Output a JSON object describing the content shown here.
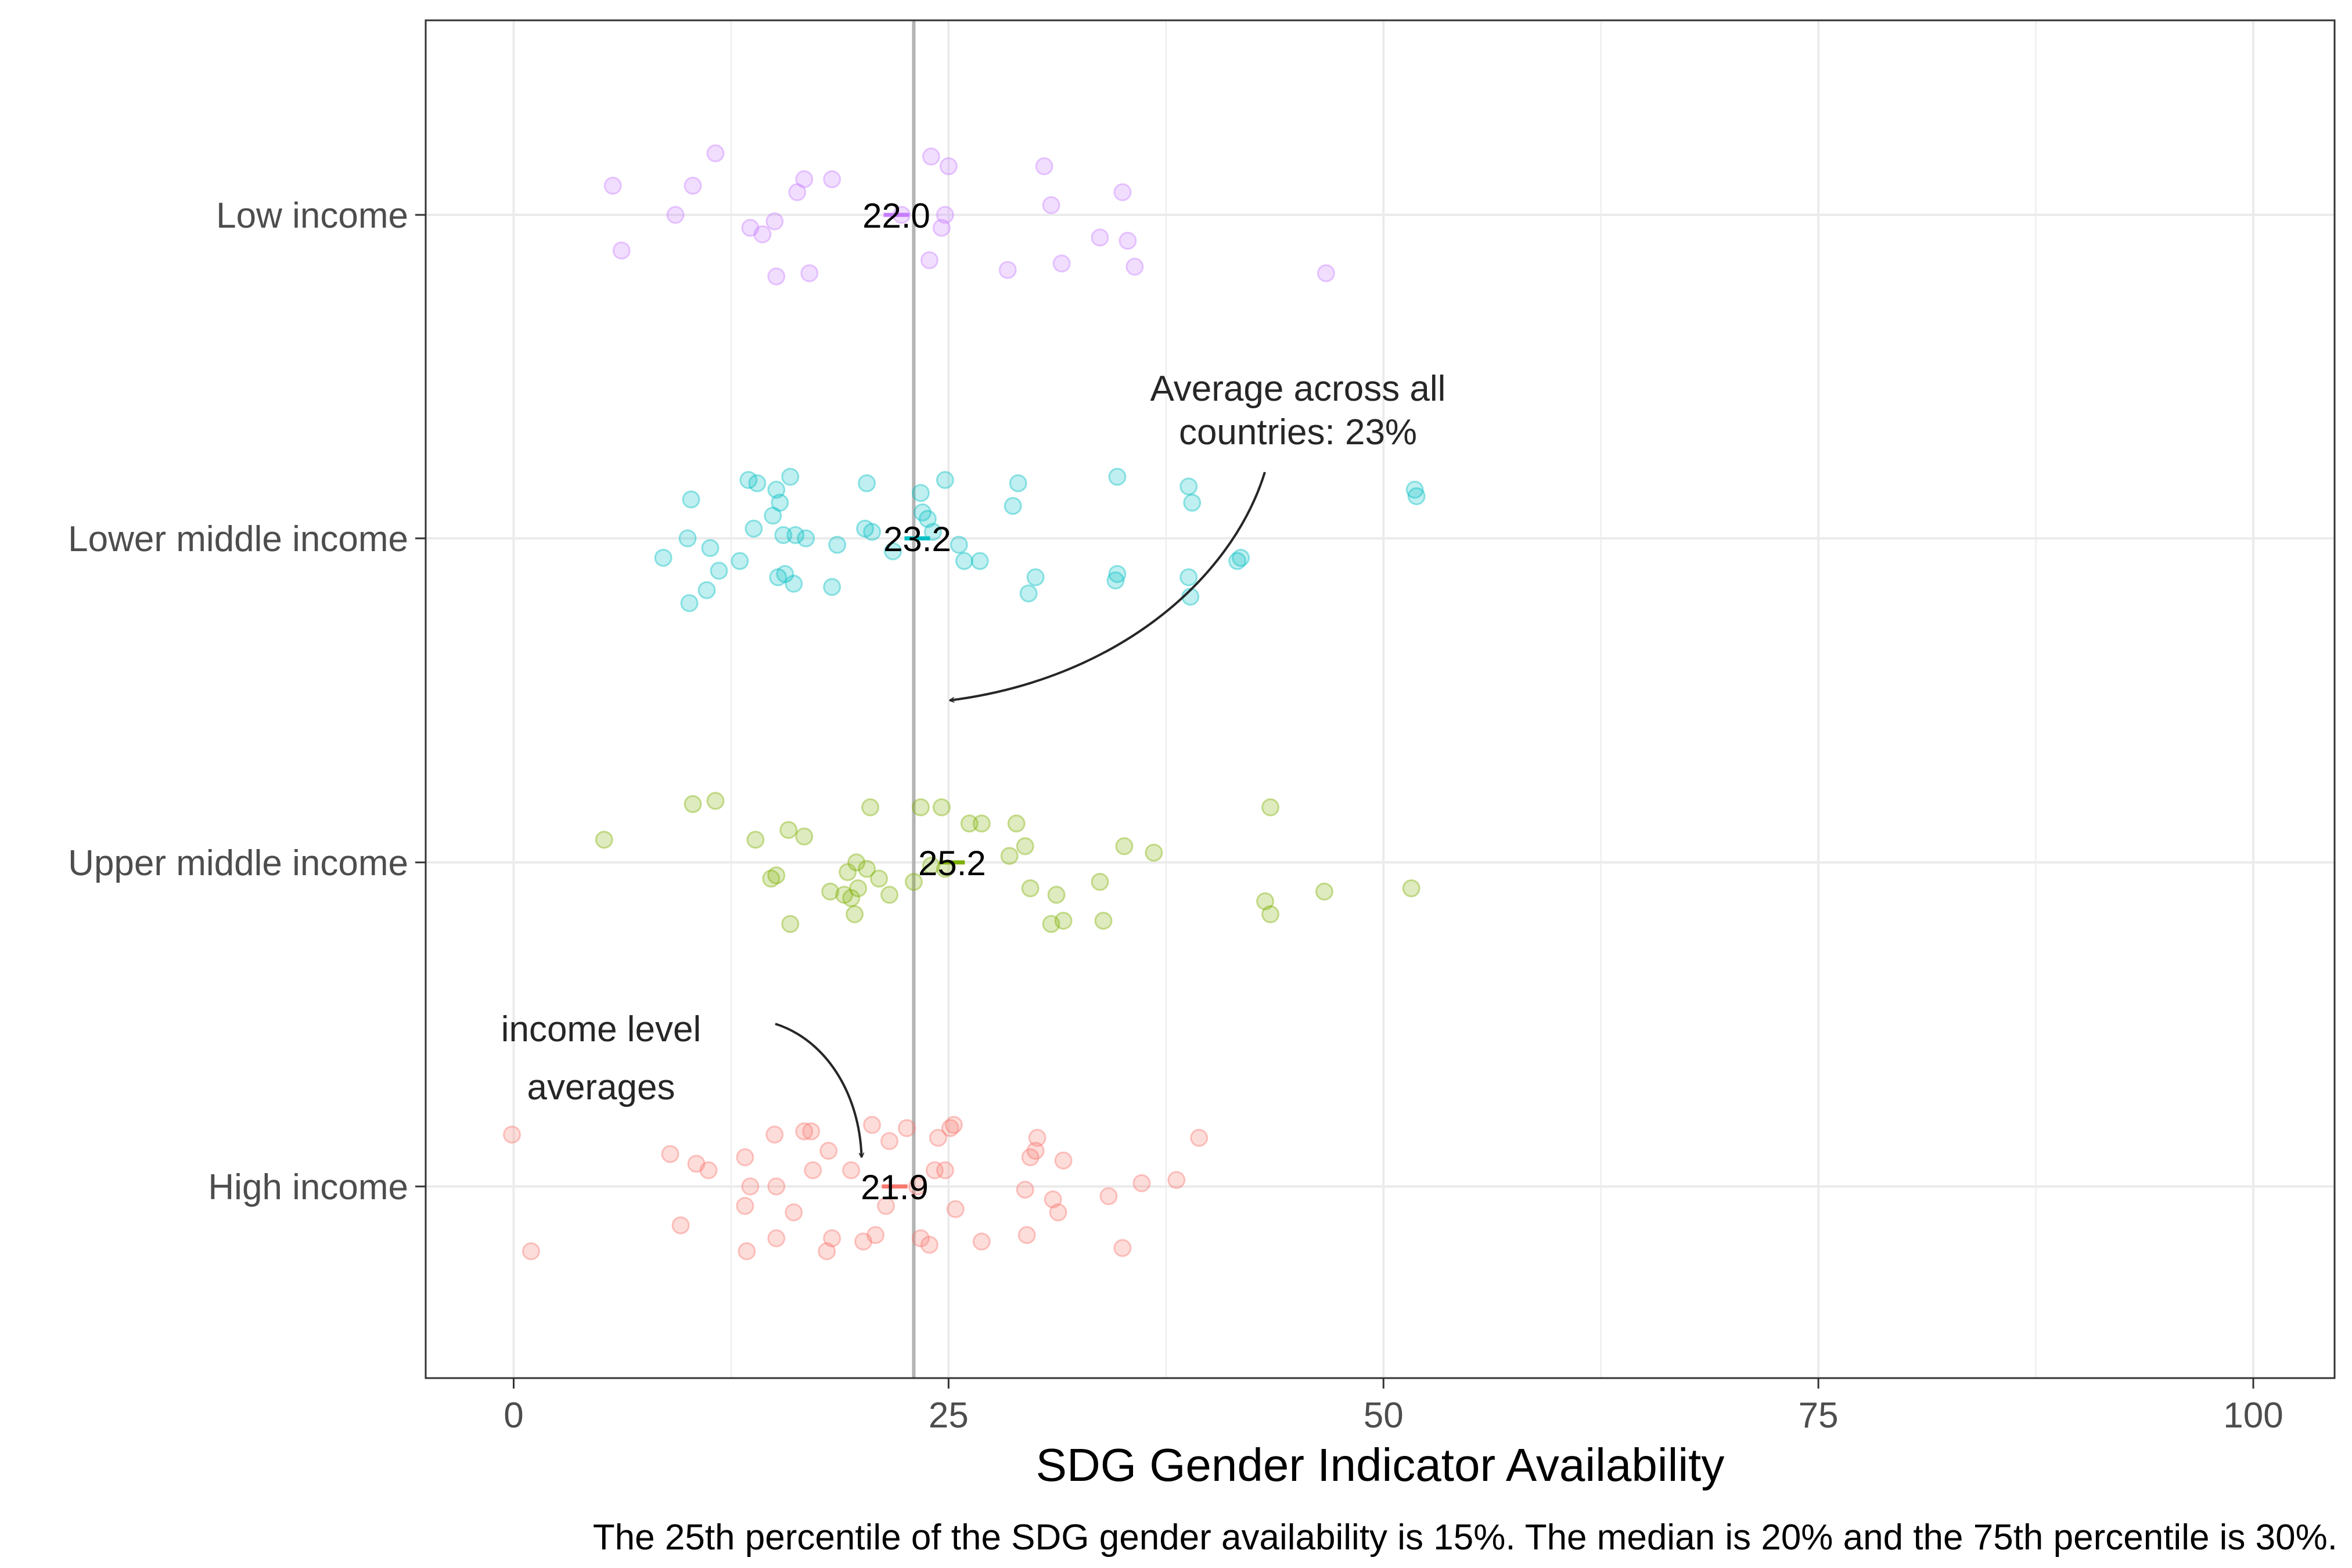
{
  "chart_data": {
    "type": "scatter",
    "subtype": "jittered strip plot with group means",
    "xlabel": "SDG Gender Indicator Availability",
    "ylabel": "",
    "caption": "The 25th percentile of the SDG gender availability is 15%. The median is 20% and the 75th percentile is 30%.",
    "xlim": [
      -5,
      105
    ],
    "x_ticks": [
      0,
      25,
      50,
      75,
      100
    ],
    "x_tick_labels": [
      "0",
      "25",
      "50",
      "75",
      "100"
    ],
    "grid": true,
    "legend": "none",
    "reference_line": {
      "x": 23,
      "color": "#b3b3b3"
    },
    "categories": [
      "Low income",
      "Lower middle income",
      "Upper middle income",
      "High income"
    ],
    "groups": [
      {
        "name": "Low income",
        "color": "#c77cff",
        "mean": 22.0,
        "mean_label": "22.0",
        "points": [
          {
            "x": 5.7,
            "j": 0.09
          },
          {
            "x": 6.2,
            "j": -0.11
          },
          {
            "x": 9.3,
            "j": 0.0
          },
          {
            "x": 10.3,
            "j": 0.09
          },
          {
            "x": 11.6,
            "j": 0.19
          },
          {
            "x": 13.6,
            "j": -0.04
          },
          {
            "x": 14.3,
            "j": -0.06
          },
          {
            "x": 15.0,
            "j": -0.02
          },
          {
            "x": 15.1,
            "j": -0.19
          },
          {
            "x": 16.3,
            "j": 0.07
          },
          {
            "x": 16.7,
            "j": 0.11
          },
          {
            "x": 17.0,
            "j": -0.18
          },
          {
            "x": 18.3,
            "j": 0.11
          },
          {
            "x": 22.3,
            "j": 0.0
          },
          {
            "x": 23.9,
            "j": -0.14
          },
          {
            "x": 24.0,
            "j": 0.18
          },
          {
            "x": 24.6,
            "j": -0.04
          },
          {
            "x": 24.8,
            "j": 0.0
          },
          {
            "x": 25.0,
            "j": 0.15
          },
          {
            "x": 28.4,
            "j": -0.17
          },
          {
            "x": 30.5,
            "j": 0.15
          },
          {
            "x": 30.9,
            "j": 0.03
          },
          {
            "x": 31.5,
            "j": -0.15
          },
          {
            "x": 33.7,
            "j": -0.07
          },
          {
            "x": 35.0,
            "j": 0.07
          },
          {
            "x": 35.3,
            "j": -0.08
          },
          {
            "x": 35.7,
            "j": -0.16
          },
          {
            "x": 46.7,
            "j": -0.18
          }
        ]
      },
      {
        "name": "Lower middle income",
        "color": "#00bfc4",
        "mean": 23.2,
        "mean_label": "23.2",
        "points": [
          {
            "x": 8.6,
            "j": -0.06
          },
          {
            "x": 10.0,
            "j": 0.0
          },
          {
            "x": 10.1,
            "j": -0.2
          },
          {
            "x": 10.2,
            "j": 0.12
          },
          {
            "x": 11.1,
            "j": -0.16
          },
          {
            "x": 11.3,
            "j": -0.03
          },
          {
            "x": 11.8,
            "j": -0.1
          },
          {
            "x": 13.0,
            "j": -0.07
          },
          {
            "x": 13.5,
            "j": 0.18
          },
          {
            "x": 13.8,
            "j": 0.03
          },
          {
            "x": 14.0,
            "j": 0.17
          },
          {
            "x": 14.9,
            "j": 0.07
          },
          {
            "x": 15.1,
            "j": 0.15
          },
          {
            "x": 15.2,
            "j": -0.12
          },
          {
            "x": 15.3,
            "j": 0.11
          },
          {
            "x": 15.5,
            "j": 0.01
          },
          {
            "x": 15.6,
            "j": -0.11
          },
          {
            "x": 15.9,
            "j": 0.19
          },
          {
            "x": 16.1,
            "j": -0.14
          },
          {
            "x": 16.2,
            "j": 0.01
          },
          {
            "x": 16.8,
            "j": 0.0
          },
          {
            "x": 18.3,
            "j": -0.15
          },
          {
            "x": 18.6,
            "j": -0.02
          },
          {
            "x": 20.2,
            "j": 0.03
          },
          {
            "x": 20.3,
            "j": 0.17
          },
          {
            "x": 20.6,
            "j": 0.02
          },
          {
            "x": 21.8,
            "j": -0.04
          },
          {
            "x": 23.4,
            "j": 0.14
          },
          {
            "x": 23.5,
            "j": 0.08
          },
          {
            "x": 23.8,
            "j": 0.06
          },
          {
            "x": 24.1,
            "j": 0.02
          },
          {
            "x": 24.8,
            "j": 0.18
          },
          {
            "x": 25.6,
            "j": -0.02
          },
          {
            "x": 25.9,
            "j": -0.07
          },
          {
            "x": 26.8,
            "j": -0.07
          },
          {
            "x": 28.7,
            "j": 0.1
          },
          {
            "x": 29.0,
            "j": 0.17
          },
          {
            "x": 29.6,
            "j": -0.17
          },
          {
            "x": 30.0,
            "j": -0.12
          },
          {
            "x": 34.6,
            "j": -0.13
          },
          {
            "x": 34.7,
            "j": -0.11
          },
          {
            "x": 34.7,
            "j": 0.19
          },
          {
            "x": 38.8,
            "j": 0.16
          },
          {
            "x": 38.8,
            "j": -0.12
          },
          {
            "x": 38.9,
            "j": -0.18
          },
          {
            "x": 39.0,
            "j": 0.11
          },
          {
            "x": 41.6,
            "j": -0.07
          },
          {
            "x": 41.8,
            "j": -0.06
          },
          {
            "x": 51.8,
            "j": 0.15
          },
          {
            "x": 51.9,
            "j": 0.13
          }
        ]
      },
      {
        "name": "Upper middle income",
        "color": "#7cae00",
        "mean": 25.2,
        "mean_label": "25.2",
        "points": [
          {
            "x": 5.2,
            "j": 0.07
          },
          {
            "x": 10.3,
            "j": 0.18
          },
          {
            "x": 11.6,
            "j": 0.19
          },
          {
            "x": 13.9,
            "j": 0.07
          },
          {
            "x": 14.8,
            "j": -0.05
          },
          {
            "x": 15.1,
            "j": -0.04
          },
          {
            "x": 15.9,
            "j": -0.19
          },
          {
            "x": 15.8,
            "j": 0.1
          },
          {
            "x": 16.7,
            "j": 0.08
          },
          {
            "x": 18.2,
            "j": -0.09
          },
          {
            "x": 19.2,
            "j": -0.03
          },
          {
            "x": 19.0,
            "j": -0.1
          },
          {
            "x": 19.4,
            "j": -0.11
          },
          {
            "x": 19.6,
            "j": -0.16
          },
          {
            "x": 19.7,
            "j": 0.0
          },
          {
            "x": 19.8,
            "j": -0.08
          },
          {
            "x": 20.5,
            "j": 0.17
          },
          {
            "x": 20.3,
            "j": -0.02
          },
          {
            "x": 21.0,
            "j": -0.05
          },
          {
            "x": 21.6,
            "j": -0.1
          },
          {
            "x": 23.0,
            "j": -0.06
          },
          {
            "x": 23.4,
            "j": 0.17
          },
          {
            "x": 24.0,
            "j": -0.01
          },
          {
            "x": 24.6,
            "j": 0.17
          },
          {
            "x": 24.8,
            "j": -0.02
          },
          {
            "x": 26.2,
            "j": 0.12
          },
          {
            "x": 26.9,
            "j": 0.12
          },
          {
            "x": 28.5,
            "j": 0.02
          },
          {
            "x": 28.9,
            "j": 0.12
          },
          {
            "x": 29.4,
            "j": 0.05
          },
          {
            "x": 29.7,
            "j": -0.08
          },
          {
            "x": 30.9,
            "j": -0.19
          },
          {
            "x": 31.2,
            "j": -0.1
          },
          {
            "x": 31.6,
            "j": -0.18
          },
          {
            "x": 33.7,
            "j": -0.06
          },
          {
            "x": 33.9,
            "j": -0.18
          },
          {
            "x": 35.1,
            "j": 0.05
          },
          {
            "x": 36.8,
            "j": 0.03
          },
          {
            "x": 43.2,
            "j": -0.12
          },
          {
            "x": 43.5,
            "j": -0.16
          },
          {
            "x": 43.5,
            "j": 0.17
          },
          {
            "x": 46.6,
            "j": -0.09
          },
          {
            "x": 51.6,
            "j": -0.08
          }
        ]
      },
      {
        "name": "High income",
        "color": "#f8766d",
        "mean": 21.9,
        "mean_label": "21.9",
        "points": [
          {
            "x": -0.1,
            "j": 0.16
          },
          {
            "x": 1.0,
            "j": -0.2
          },
          {
            "x": 9.0,
            "j": 0.1
          },
          {
            "x": 9.6,
            "j": -0.12
          },
          {
            "x": 10.5,
            "j": 0.07
          },
          {
            "x": 11.2,
            "j": 0.05
          },
          {
            "x": 13.3,
            "j": 0.09
          },
          {
            "x": 13.3,
            "j": -0.06
          },
          {
            "x": 13.4,
            "j": -0.2
          },
          {
            "x": 13.6,
            "j": 0.0
          },
          {
            "x": 15.0,
            "j": 0.16
          },
          {
            "x": 15.1,
            "j": -0.16
          },
          {
            "x": 15.1,
            "j": 0.0
          },
          {
            "x": 16.1,
            "j": -0.08
          },
          {
            "x": 16.7,
            "j": 0.17
          },
          {
            "x": 17.1,
            "j": 0.17
          },
          {
            "x": 17.2,
            "j": 0.05
          },
          {
            "x": 18.0,
            "j": -0.2
          },
          {
            "x": 18.1,
            "j": 0.11
          },
          {
            "x": 18.3,
            "j": -0.16
          },
          {
            "x": 19.4,
            "j": 0.05
          },
          {
            "x": 20.1,
            "j": -0.17
          },
          {
            "x": 20.6,
            "j": 0.19
          },
          {
            "x": 20.8,
            "j": -0.15
          },
          {
            "x": 21.4,
            "j": -0.06
          },
          {
            "x": 21.6,
            "j": 0.14
          },
          {
            "x": 22.6,
            "j": 0.18
          },
          {
            "x": 23.2,
            "j": 0.0
          },
          {
            "x": 23.4,
            "j": -0.16
          },
          {
            "x": 23.9,
            "j": -0.18
          },
          {
            "x": 24.2,
            "j": 0.05
          },
          {
            "x": 24.4,
            "j": 0.15
          },
          {
            "x": 24.8,
            "j": 0.05
          },
          {
            "x": 25.1,
            "j": 0.18
          },
          {
            "x": 25.3,
            "j": 0.19
          },
          {
            "x": 25.4,
            "j": -0.07
          },
          {
            "x": 26.9,
            "j": -0.17
          },
          {
            "x": 29.4,
            "j": -0.01
          },
          {
            "x": 29.5,
            "j": -0.15
          },
          {
            "x": 29.7,
            "j": 0.09
          },
          {
            "x": 30.0,
            "j": 0.11
          },
          {
            "x": 30.1,
            "j": 0.15
          },
          {
            "x": 31.0,
            "j": -0.04
          },
          {
            "x": 31.3,
            "j": -0.08
          },
          {
            "x": 31.6,
            "j": 0.08
          },
          {
            "x": 34.2,
            "j": -0.03
          },
          {
            "x": 35.0,
            "j": -0.19
          },
          {
            "x": 36.1,
            "j": 0.01
          },
          {
            "x": 38.1,
            "j": 0.02
          },
          {
            "x": 39.4,
            "j": 0.15
          }
        ]
      }
    ],
    "annotations": [
      {
        "text_lines": [
          "Average across all",
          "countries: 23%"
        ],
        "arrow_to": {
          "x": 24.8,
          "group": "Lower middle income",
          "offset": -0.5
        }
      },
      {
        "text_lines": [
          "income level",
          "averages"
        ],
        "arrow_to": {
          "x": 20.0,
          "group": "High income",
          "offset": 0.09
        }
      }
    ]
  }
}
